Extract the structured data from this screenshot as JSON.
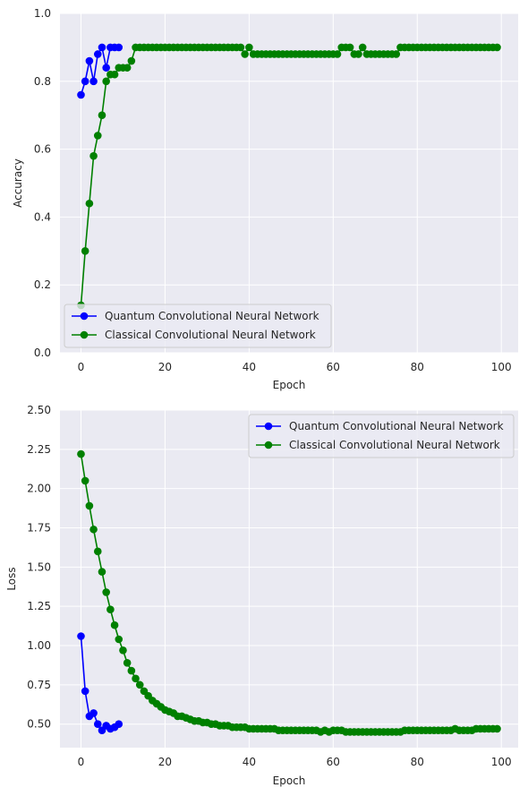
{
  "colors": {
    "background": "#eaeaf2",
    "grid": "#ffffff",
    "quantum": "#0000ff",
    "classical": "#008000"
  },
  "chart_data": [
    {
      "type": "line",
      "xlabel": "Epoch",
      "ylabel": "Accuracy",
      "xlim": [
        -5,
        104
      ],
      "ylim": [
        0,
        1
      ],
      "xticks": [
        0,
        20,
        40,
        60,
        80,
        100
      ],
      "yticks": [
        0.0,
        0.2,
        0.4,
        0.6,
        0.8,
        1.0
      ],
      "ytick_labels": [
        "0.0",
        "0.2",
        "0.4",
        "0.6",
        "0.8",
        "1.0"
      ],
      "grid": true,
      "legend_position": "lower-left",
      "series": [
        {
          "name": "Quantum Convolutional Neural Network",
          "color": "#0000ff",
          "x": [
            0,
            1,
            2,
            3,
            4,
            5,
            6,
            7,
            8,
            9
          ],
          "y": [
            0.76,
            0.8,
            0.86,
            0.8,
            0.88,
            0.9,
            0.84,
            0.9,
            0.9,
            0.9
          ]
        },
        {
          "name": "Classical Convolutional Neural Network",
          "color": "#008000",
          "x": [
            0,
            1,
            2,
            3,
            4,
            5,
            6,
            7,
            8,
            9,
            10,
            11,
            12,
            13,
            14,
            15,
            16,
            17,
            18,
            19,
            20,
            21,
            22,
            23,
            24,
            25,
            26,
            27,
            28,
            29,
            30,
            31,
            32,
            33,
            34,
            35,
            36,
            37,
            38,
            39,
            40,
            41,
            42,
            43,
            44,
            45,
            46,
            47,
            48,
            49,
            50,
            51,
            52,
            53,
            54,
            55,
            56,
            57,
            58,
            59,
            60,
            61,
            62,
            63,
            64,
            65,
            66,
            67,
            68,
            69,
            70,
            71,
            72,
            73,
            74,
            75,
            76,
            77,
            78,
            79,
            80,
            81,
            82,
            83,
            84,
            85,
            86,
            87,
            88,
            89,
            90,
            91,
            92,
            93,
            94,
            95,
            96,
            97,
            98,
            99
          ],
          "y": [
            0.14,
            0.3,
            0.44,
            0.58,
            0.64,
            0.7,
            0.8,
            0.82,
            0.82,
            0.84,
            0.84,
            0.84,
            0.86,
            0.9,
            0.9,
            0.9,
            0.9,
            0.9,
            0.9,
            0.9,
            0.9,
            0.9,
            0.9,
            0.9,
            0.9,
            0.9,
            0.9,
            0.9,
            0.9,
            0.9,
            0.9,
            0.9,
            0.9,
            0.9,
            0.9,
            0.9,
            0.9,
            0.9,
            0.9,
            0.88,
            0.9,
            0.88,
            0.88,
            0.88,
            0.88,
            0.88,
            0.88,
            0.88,
            0.88,
            0.88,
            0.88,
            0.88,
            0.88,
            0.88,
            0.88,
            0.88,
            0.88,
            0.88,
            0.88,
            0.88,
            0.88,
            0.88,
            0.9,
            0.9,
            0.9,
            0.88,
            0.88,
            0.9,
            0.88,
            0.88,
            0.88,
            0.88,
            0.88,
            0.88,
            0.88,
            0.88,
            0.9,
            0.9,
            0.9,
            0.9,
            0.9,
            0.9,
            0.9,
            0.9,
            0.9,
            0.9,
            0.9,
            0.9,
            0.9,
            0.9,
            0.9,
            0.9,
            0.9,
            0.9,
            0.9,
            0.9,
            0.9,
            0.9,
            0.9,
            0.9
          ]
        }
      ]
    },
    {
      "type": "line",
      "xlabel": "Epoch",
      "ylabel": "Loss",
      "xlim": [
        -5,
        104
      ],
      "ylim": [
        0.35,
        2.5
      ],
      "xticks": [
        0,
        20,
        40,
        60,
        80,
        100
      ],
      "yticks": [
        0.5,
        0.75,
        1.0,
        1.25,
        1.5,
        1.75,
        2.0,
        2.25,
        2.5
      ],
      "ytick_labels": [
        "0.50",
        "0.75",
        "1.00",
        "1.25",
        "1.50",
        "1.75",
        "2.00",
        "2.25",
        "2.50"
      ],
      "grid": true,
      "legend_position": "top-right",
      "series": [
        {
          "name": "Quantum Convolutional Neural Network",
          "color": "#0000ff",
          "x": [
            0,
            1,
            2,
            3,
            4,
            5,
            6,
            7,
            8,
            9
          ],
          "y": [
            1.06,
            0.71,
            0.55,
            0.57,
            0.5,
            0.46,
            0.49,
            0.47,
            0.48,
            0.5
          ]
        },
        {
          "name": "Classical Convolutional Neural Network",
          "color": "#008000",
          "x": [
            0,
            1,
            2,
            3,
            4,
            5,
            6,
            7,
            8,
            9,
            10,
            11,
            12,
            13,
            14,
            15,
            16,
            17,
            18,
            19,
            20,
            21,
            22,
            23,
            24,
            25,
            26,
            27,
            28,
            29,
            30,
            31,
            32,
            33,
            34,
            35,
            36,
            37,
            38,
            39,
            40,
            41,
            42,
            43,
            44,
            45,
            46,
            47,
            48,
            49,
            50,
            51,
            52,
            53,
            54,
            55,
            56,
            57,
            58,
            59,
            60,
            61,
            62,
            63,
            64,
            65,
            66,
            67,
            68,
            69,
            70,
            71,
            72,
            73,
            74,
            75,
            76,
            77,
            78,
            79,
            80,
            81,
            82,
            83,
            84,
            85,
            86,
            87,
            88,
            89,
            90,
            91,
            92,
            93,
            94,
            95,
            96,
            97,
            98,
            99
          ],
          "y": [
            2.22,
            2.05,
            1.89,
            1.74,
            1.6,
            1.47,
            1.34,
            1.23,
            1.13,
            1.04,
            0.97,
            0.89,
            0.84,
            0.79,
            0.75,
            0.71,
            0.68,
            0.65,
            0.63,
            0.61,
            0.59,
            0.58,
            0.57,
            0.55,
            0.55,
            0.54,
            0.53,
            0.52,
            0.52,
            0.51,
            0.51,
            0.5,
            0.5,
            0.49,
            0.49,
            0.49,
            0.48,
            0.48,
            0.48,
            0.48,
            0.47,
            0.47,
            0.47,
            0.47,
            0.47,
            0.47,
            0.47,
            0.46,
            0.46,
            0.46,
            0.46,
            0.46,
            0.46,
            0.46,
            0.46,
            0.46,
            0.46,
            0.45,
            0.46,
            0.45,
            0.46,
            0.46,
            0.46,
            0.45,
            0.45,
            0.45,
            0.45,
            0.45,
            0.45,
            0.45,
            0.45,
            0.45,
            0.45,
            0.45,
            0.45,
            0.45,
            0.45,
            0.46,
            0.46,
            0.46,
            0.46,
            0.46,
            0.46,
            0.46,
            0.46,
            0.46,
            0.46,
            0.46,
            0.46,
            0.47,
            0.46,
            0.46,
            0.46,
            0.46,
            0.47,
            0.47,
            0.47,
            0.47,
            0.47,
            0.47
          ]
        }
      ]
    }
  ]
}
